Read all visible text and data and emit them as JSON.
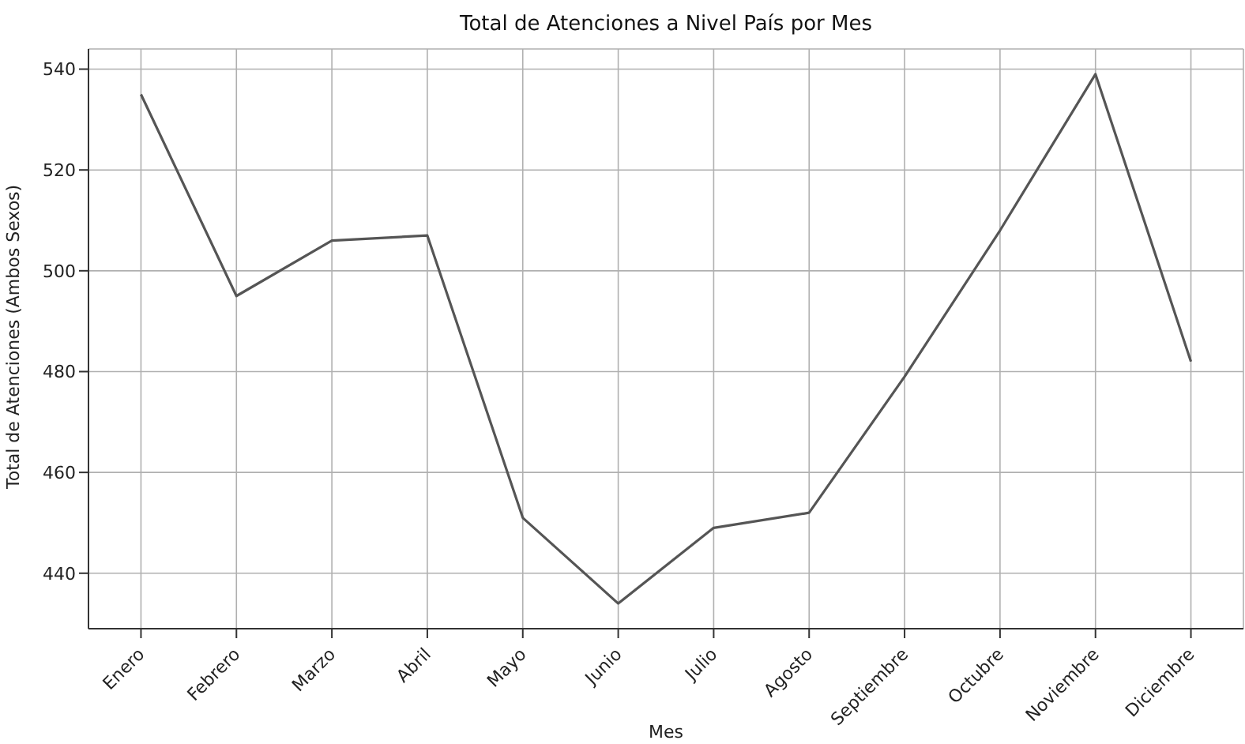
{
  "chart_data": {
    "type": "line",
    "title": "Total de Atenciones a Nivel País por Mes",
    "xlabel": "Mes",
    "ylabel": "Total de Atenciones (Ambos Sexos)",
    "categories": [
      "Enero",
      "Febrero",
      "Marzo",
      "Abril",
      "Mayo",
      "Junio",
      "Julio",
      "Agosto",
      "Septiembre",
      "Octubre",
      "Noviembre",
      "Diciembre"
    ],
    "series": [
      {
        "color": "#555555",
        "values": [
          535,
          495,
          506,
          507,
          451,
          434,
          449,
          452,
          479,
          508,
          539,
          482
        ]
      }
    ],
    "ylim": [
      429,
      544
    ],
    "yticks": [
      440,
      460,
      480,
      500,
      520,
      540
    ],
    "grid": true,
    "marker": "none",
    "line_style": "solid"
  }
}
